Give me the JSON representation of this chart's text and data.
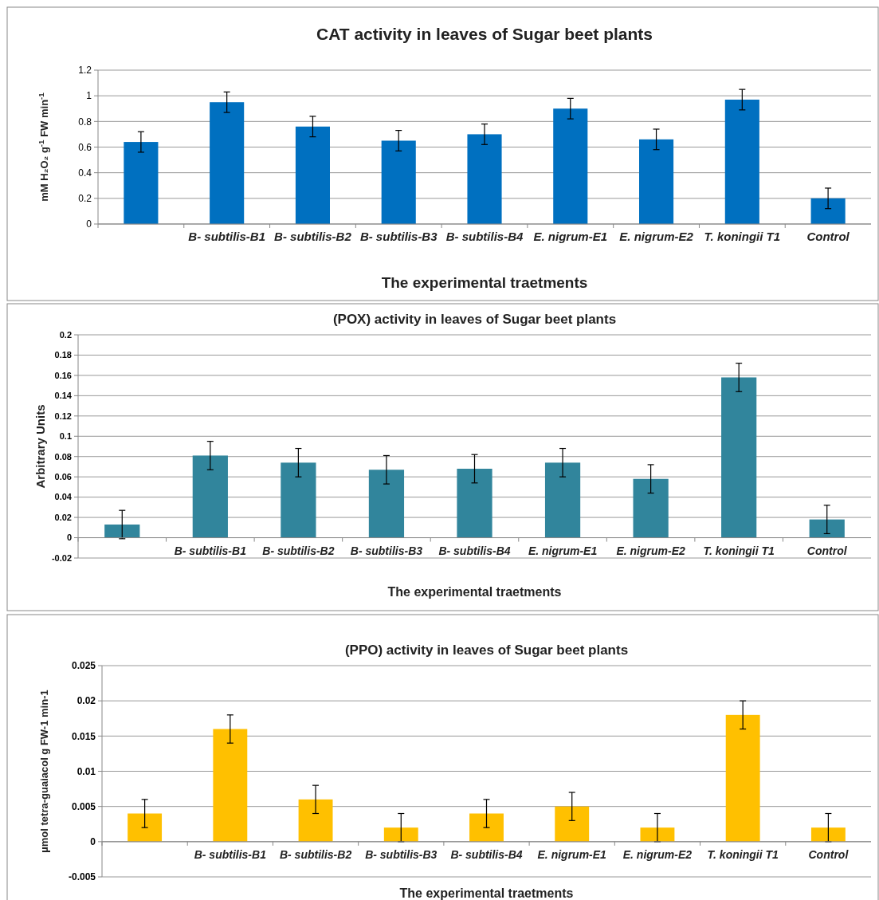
{
  "chart_data": [
    {
      "type": "bar",
      "title": "CAT activity in leaves of Sugar beet plants",
      "xlabel": "The experimental traetments",
      "ylabel": "mM H₂O₂ g$^{-1}$ FW min$^{-1}$",
      "categories": [
        null,
        "B- subtilis-B1",
        "B- subtilis-B2",
        "B- subtilis-B3",
        "B- subtilis-B4",
        "E. nigrum-E1",
        "E. nigrum-E2",
        "T. koningii T1",
        "Control"
      ],
      "values": [
        0.64,
        0.95,
        0.76,
        0.65,
        0.7,
        0.9,
        0.66,
        0.97,
        0.2
      ],
      "errors": [
        0.08,
        0.08,
        0.08,
        0.08,
        0.08,
        0.08,
        0.08,
        0.08,
        0.08
      ],
      "color": "#0070c0",
      "ylim": [
        0,
        1.2
      ],
      "yticks": [
        0,
        0.2,
        0.4,
        0.6,
        0.8,
        1,
        1.2
      ],
      "grid": "y"
    },
    {
      "type": "bar",
      "title": "(POX) activity in leaves of Sugar beet plants",
      "xlabel": "The experimental traetments",
      "ylabel": "Arbitrary Units",
      "categories": [
        null,
        "B- subtilis-B1",
        "B- subtilis-B2",
        "B- subtilis-B3",
        "B- subtilis-B4",
        "E. nigrum-E1",
        "E. nigrum-E2",
        "T. koningii T1",
        "Control"
      ],
      "values": [
        0.013,
        0.081,
        0.074,
        0.067,
        0.068,
        0.074,
        0.058,
        0.158,
        0.018
      ],
      "errors": [
        0.014,
        0.014,
        0.014,
        0.014,
        0.014,
        0.014,
        0.014,
        0.014,
        0.014
      ],
      "color": "#31859c",
      "ylim": [
        -0.02,
        0.2
      ],
      "yticks": [
        -0.02,
        0,
        0.02,
        0.04,
        0.06,
        0.08,
        0.1,
        0.12,
        0.14,
        0.16,
        0.18,
        0.2
      ],
      "grid": "y"
    },
    {
      "type": "bar",
      "title": "(PPO) activity in leaves of Sugar beet plants",
      "xlabel": "The experimental traetments",
      "ylabel": "µmol tetra-guaiacol  g FW-1 min-1",
      "categories": [
        null,
        "B- subtilis-B1",
        "B- subtilis-B2",
        "B- subtilis-B3",
        "B- subtilis-B4",
        "E. nigrum-E1",
        "E. nigrum-E2",
        "T. koningii T1",
        "Control"
      ],
      "values": [
        0.004,
        0.016,
        0.006,
        0.002,
        0.004,
        0.005,
        0.002,
        0.018,
        0.002
      ],
      "errors": [
        0.002,
        0.002,
        0.002,
        0.002,
        0.002,
        0.002,
        0.002,
        0.002,
        0.002
      ],
      "color": "#ffc000",
      "ylim": [
        -0.005,
        0.025
      ],
      "yticks": [
        -0.005,
        0,
        0.005,
        0.01,
        0.015,
        0.02,
        0.025
      ],
      "grid": "y"
    }
  ]
}
